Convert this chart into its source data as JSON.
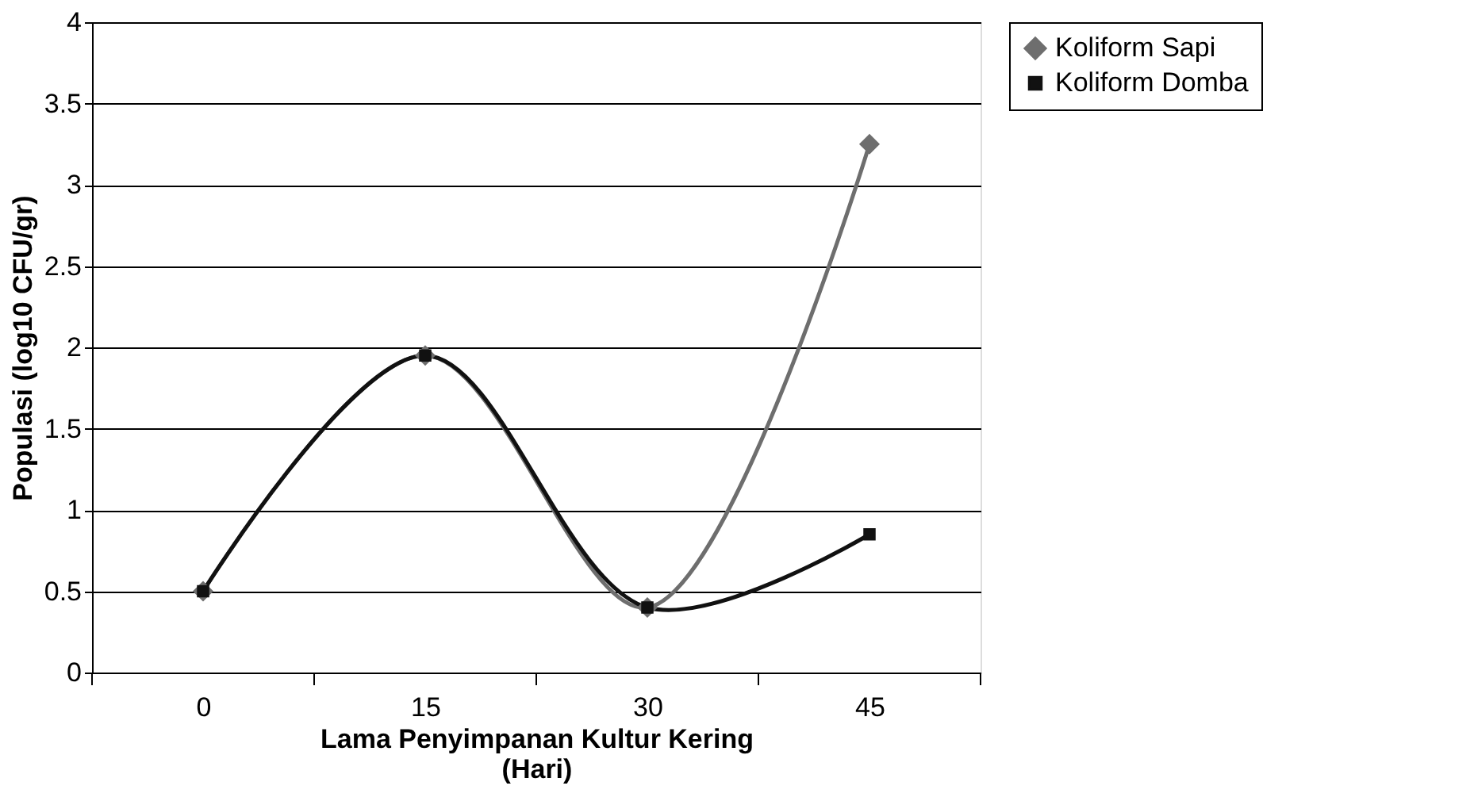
{
  "chart_data": {
    "type": "line",
    "xlabel": "Lama Penyimpanan Kultur Kering\n(Hari)",
    "ylabel": "Populasi (log10 CFU/gr)",
    "categories": [
      "0",
      "15",
      "30",
      "45"
    ],
    "series": [
      {
        "name": "Koliform Sapi",
        "color": "#6e6e6e",
        "marker": "diamond",
        "values": [
          0.5,
          1.95,
          0.4,
          3.25
        ]
      },
      {
        "name": "Koliform Domba",
        "color": "#111111",
        "marker": "square",
        "values": [
          0.5,
          1.95,
          0.4,
          0.85
        ]
      }
    ],
    "ylim": [
      0,
      4
    ],
    "yticks": [
      0,
      0.5,
      1,
      1.5,
      2,
      2.5,
      3,
      3.5,
      4
    ],
    "grid": "y",
    "legend": "right",
    "line_style": "solid"
  }
}
